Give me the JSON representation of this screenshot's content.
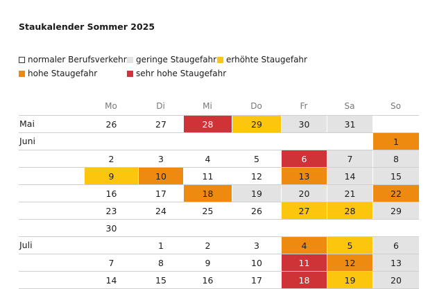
{
  "header": {
    "title": "Staukalender Sommer 2025"
  },
  "legend": [
    {
      "label": "normaler Berufsverkehr",
      "color": "#ffffff"
    },
    {
      "label": "geringe Staugefahr",
      "color": "#e3e3e3"
    },
    {
      "label": "erhöhte Staugefahr",
      "color": "#fcc60f"
    },
    {
      "label": "hohe Staugefahr",
      "color": "#ee8a10"
    },
    {
      "label": "sehr hohe Staugefahr",
      "color": "#cf3237"
    }
  ],
  "table": {
    "weekdays": [
      "Mo",
      "Di",
      "Mi",
      "Do",
      "Fr",
      "Sa",
      "So"
    ],
    "rows": [
      {
        "month": "Mai",
        "cells": [
          {
            "day": 26,
            "color": "#ffffff"
          },
          {
            "day": 27,
            "color": "#ffffff"
          },
          {
            "day": 28,
            "color": "#cf3237"
          },
          {
            "day": 29,
            "color": "#fcc60f"
          },
          {
            "day": 30,
            "color": "#e3e3e3"
          },
          {
            "day": 31,
            "color": "#e3e3e3"
          },
          null
        ]
      },
      {
        "month": "Juni",
        "cells": [
          null,
          null,
          null,
          null,
          null,
          null,
          {
            "day": 1,
            "color": "#ee8a10"
          }
        ]
      },
      {
        "month": null,
        "cells": [
          {
            "day": 2,
            "color": "#ffffff"
          },
          {
            "day": 3,
            "color": "#ffffff"
          },
          {
            "day": 4,
            "color": "#ffffff"
          },
          {
            "day": 5,
            "color": "#ffffff"
          },
          {
            "day": 6,
            "color": "#cf3237"
          },
          {
            "day": 7,
            "color": "#e3e3e3"
          },
          {
            "day": 8,
            "color": "#e3e3e3"
          }
        ]
      },
      {
        "month": null,
        "cells": [
          {
            "day": 9,
            "color": "#fcc60f"
          },
          {
            "day": 10,
            "color": "#ee8a10"
          },
          {
            "day": 11,
            "color": "#ffffff"
          },
          {
            "day": 12,
            "color": "#ffffff"
          },
          {
            "day": 13,
            "color": "#ee8a10"
          },
          {
            "day": 14,
            "color": "#e3e3e3"
          },
          {
            "day": 15,
            "color": "#e3e3e3"
          }
        ]
      },
      {
        "month": null,
        "cells": [
          {
            "day": 16,
            "color": "#ffffff"
          },
          {
            "day": 17,
            "color": "#ffffff"
          },
          {
            "day": 18,
            "color": "#ee8a10"
          },
          {
            "day": 19,
            "color": "#e3e3e3"
          },
          {
            "day": 20,
            "color": "#e3e3e3"
          },
          {
            "day": 21,
            "color": "#e3e3e3"
          },
          {
            "day": 22,
            "color": "#ee8a10"
          }
        ]
      },
      {
        "month": null,
        "cells": [
          {
            "day": 23,
            "color": "#ffffff"
          },
          {
            "day": 24,
            "color": "#ffffff"
          },
          {
            "day": 25,
            "color": "#ffffff"
          },
          {
            "day": 26,
            "color": "#ffffff"
          },
          {
            "day": 27,
            "color": "#fcc60f"
          },
          {
            "day": 28,
            "color": "#fcc60f"
          },
          {
            "day": 29,
            "color": "#e3e3e3"
          }
        ]
      },
      {
        "month": null,
        "cells": [
          {
            "day": 30,
            "color": "#ffffff"
          },
          null,
          null,
          null,
          null,
          null,
          null
        ]
      },
      {
        "month": "Juli",
        "cells": [
          null,
          {
            "day": 1,
            "color": "#ffffff"
          },
          {
            "day": 2,
            "color": "#ffffff"
          },
          {
            "day": 3,
            "color": "#ffffff"
          },
          {
            "day": 4,
            "color": "#ee8a10"
          },
          {
            "day": 5,
            "color": "#fcc60f"
          },
          {
            "day": 6,
            "color": "#e3e3e3"
          }
        ]
      },
      {
        "month": null,
        "cells": [
          {
            "day": 7,
            "color": "#ffffff"
          },
          {
            "day": 8,
            "color": "#ffffff"
          },
          {
            "day": 9,
            "color": "#ffffff"
          },
          {
            "day": 10,
            "color": "#ffffff"
          },
          {
            "day": 11,
            "color": "#cf3237"
          },
          {
            "day": 12,
            "color": "#ee8a10"
          },
          {
            "day": 13,
            "color": "#e3e3e3"
          }
        ]
      },
      {
        "month": null,
        "cells": [
          {
            "day": 14,
            "color": "#ffffff"
          },
          {
            "day": 15,
            "color": "#ffffff"
          },
          {
            "day": 16,
            "color": "#ffffff"
          },
          {
            "day": 17,
            "color": "#ffffff"
          },
          {
            "day": 18,
            "color": "#cf3237"
          },
          {
            "day": 19,
            "color": "#fcc60f"
          },
          {
            "day": 20,
            "color": "#e3e3e3"
          }
        ]
      }
    ]
  }
}
